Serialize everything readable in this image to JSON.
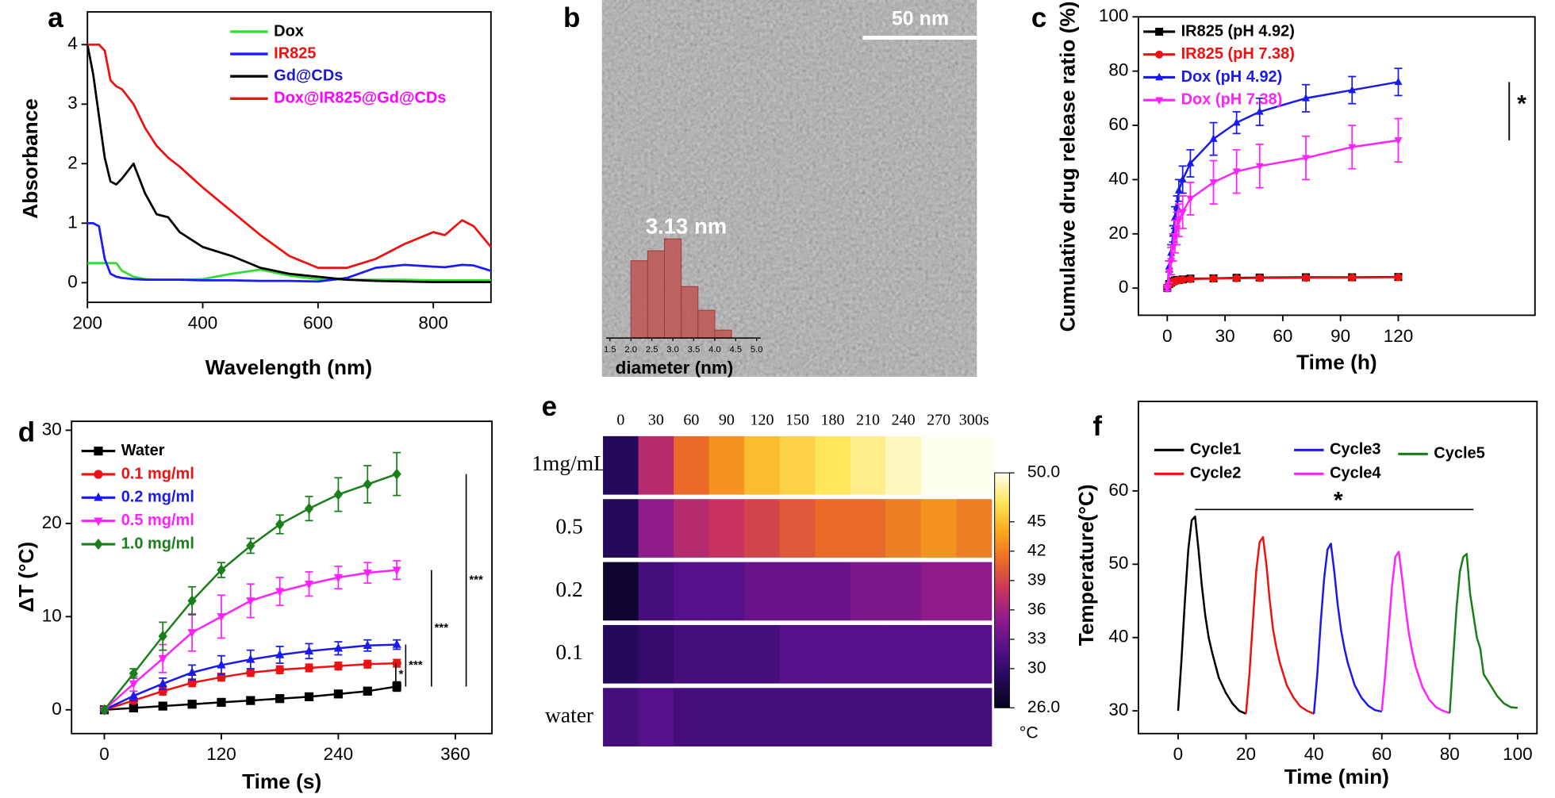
{
  "chart_data": [
    {
      "type": "line",
      "panel": "a",
      "xlabel": "Wavelength (nm)",
      "ylabel": "Absorbance",
      "x": [
        200,
        210,
        220,
        230,
        240,
        250,
        260,
        280,
        300,
        320,
        340,
        360,
        400,
        450,
        500,
        550,
        600,
        650,
        700,
        750,
        800,
        820,
        850,
        870,
        900
      ],
      "series": [
        {
          "name": "Dox",
          "color": "#33dd33",
          "label_color": "#000000",
          "values": [
            0.33,
            0.33,
            0.33,
            0.33,
            0.33,
            0.33,
            0.2,
            0.1,
            0.06,
            0.05,
            0.05,
            0.05,
            0.06,
            0.15,
            0.22,
            0.12,
            0.06,
            0.05,
            0.05,
            0.05,
            0.04,
            0.04,
            0.04,
            0.04,
            0.04
          ]
        },
        {
          "name": "IR825",
          "color": "#1a1aff",
          "label_color": "#ee1111",
          "values": [
            1.0,
            1.0,
            0.95,
            0.4,
            0.15,
            0.1,
            0.08,
            0.06,
            0.05,
            0.05,
            0.05,
            0.05,
            0.04,
            0.04,
            0.03,
            0.03,
            0.02,
            0.08,
            0.25,
            0.3,
            0.27,
            0.26,
            0.3,
            0.29,
            0.2
          ]
        },
        {
          "name": "Gd@CDs",
          "color": "#000000",
          "label_color": "#1a1acc",
          "values": [
            4.0,
            3.5,
            2.8,
            2.1,
            1.7,
            1.65,
            1.75,
            2.0,
            1.5,
            1.15,
            1.1,
            0.85,
            0.6,
            0.45,
            0.25,
            0.15,
            0.1,
            0.05,
            0.03,
            0.02,
            0.01,
            0.01,
            0.01,
            0.01,
            0.01
          ]
        },
        {
          "name": "Dox@IR825@Gd@CDs",
          "color": "#ee1111",
          "label_color": "#ff00ff",
          "values": [
            4.0,
            4.0,
            4.0,
            3.9,
            3.4,
            3.3,
            3.25,
            3.0,
            2.6,
            2.3,
            2.1,
            1.95,
            1.6,
            1.2,
            0.8,
            0.45,
            0.25,
            0.25,
            0.4,
            0.65,
            0.85,
            0.8,
            1.05,
            0.95,
            0.6
          ]
        }
      ],
      "xlim": [
        200,
        900
      ],
      "ylim": [
        -0.33,
        4.55
      ],
      "xticks": [
        200,
        400,
        600,
        800
      ],
      "yticks": [
        0,
        1,
        2,
        3,
        4
      ]
    },
    {
      "type": "image",
      "panel": "b",
      "scale_bar": "50 nm",
      "inset": {
        "type": "histogram",
        "annotation": "3.13 nm",
        "xlabel": "diameter (nm)",
        "bins": [
          2.0,
          2.4,
          2.8,
          3.2,
          3.6,
          4.0,
          4.4
        ],
        "counts": [
          78,
          88,
          100,
          52,
          28,
          8
        ],
        "color": "#c05555",
        "xlim": [
          1.5,
          5.0
        ],
        "xticks": [
          1.5,
          {
            "value": 2,
            "label": "2.0"
          },
          2.5,
          {
            "value": 3,
            "label": "3.0"
          },
          3.5,
          {
            "value": 4,
            "label": "4.0"
          },
          4.5,
          {
            "value": 5,
            "label": "5.0"
          }
        ]
      }
    },
    {
      "type": "line",
      "panel": "c",
      "xlabel": "Time (h)",
      "ylabel": "Cumulative drug release ratio (%)",
      "annotation": "*",
      "x": [
        0,
        1,
        2,
        3,
        4,
        5,
        6,
        8,
        12,
        24,
        36,
        48,
        72,
        96,
        120
      ],
      "series": [
        {
          "name": "IR825 (pH 4.92)",
          "color": "#000000",
          "label_color": "#000000",
          "marker": "square",
          "values": [
            0,
            1.5,
            2,
            2.5,
            2.8,
            3,
            3,
            3.2,
            3.5,
            3.6,
            3.8,
            3.9,
            4,
            4,
            4.1
          ],
          "errors": [
            0.5,
            0.5,
            0.5,
            0.5,
            0.5,
            0.5,
            0.5,
            0.5,
            0.5,
            0.5,
            0.5,
            0.5,
            0.5,
            0.5,
            0.5
          ]
        },
        {
          "name": "IR825 (pH 7.38)",
          "color": "#ee1111",
          "label_color": "#ee1111",
          "marker": "circle",
          "values": [
            0,
            1.3,
            1.8,
            2.3,
            2.6,
            2.8,
            2.9,
            3.1,
            3.3,
            3.5,
            3.6,
            3.7,
            3.8,
            3.9,
            4
          ],
          "errors": [
            0.5,
            0.5,
            0.5,
            0.5,
            0.5,
            0.5,
            0.5,
            0.5,
            0.5,
            0.5,
            0.5,
            0.5,
            0.5,
            0.5,
            0.5
          ]
        },
        {
          "name": "Dox (pH 4.92)",
          "color": "#1a1aee",
          "label_color": "#1a1aee",
          "marker": "triangle-up",
          "values": [
            0,
            8,
            13,
            20,
            26,
            30,
            36,
            40,
            46,
            55,
            61,
            65,
            70,
            73,
            76
          ],
          "errors": [
            1,
            2,
            3,
            3,
            4,
            4,
            4,
            5,
            5,
            6,
            4,
            5,
            5,
            5,
            5
          ]
        },
        {
          "name": "Dox (pH 7.38)",
          "color": "#ff22ff",
          "label_color": "#ff22ff",
          "marker": "triangle-down",
          "values": [
            0,
            6,
            10,
            15,
            19,
            22,
            25,
            28,
            33,
            39,
            43,
            45,
            48,
            52,
            54.5
          ],
          "errors": [
            1,
            4,
            5,
            5,
            6,
            6,
            6,
            6,
            6,
            8,
            8,
            8,
            8,
            8,
            8
          ]
        }
      ],
      "xlim": [
        -15,
        191
      ],
      "ylim": [
        -10,
        100
      ],
      "xticks": [
        0,
        30,
        60,
        90,
        120
      ],
      "yticks": [
        0,
        20,
        40,
        60,
        80,
        100
      ]
    },
    {
      "type": "line",
      "panel": "d",
      "xlabel": "Time (s)",
      "ylabel": "ΔT (°C)",
      "annotations": [
        "*",
        "***",
        "***",
        "***"
      ],
      "x": [
        0,
        30,
        60,
        90,
        120,
        150,
        180,
        210,
        240,
        270,
        300
      ],
      "series": [
        {
          "name": "Water",
          "color": "#000000",
          "label_color": "#000000",
          "marker": "square",
          "values": [
            0,
            0.2,
            0.4,
            0.6,
            0.8,
            1.0,
            1.2,
            1.4,
            1.7,
            2.0,
            2.5
          ],
          "errors": [
            0,
            0.2,
            0.2,
            0.2,
            0.2,
            0.2,
            0.3,
            0.3,
            0.3,
            0.4,
            0.5
          ]
        },
        {
          "name": "0.1 mg/ml",
          "color": "#ee1111",
          "label_color": "#ee1111",
          "marker": "circle",
          "values": [
            0,
            1.0,
            2.0,
            2.9,
            3.5,
            4.0,
            4.3,
            4.5,
            4.7,
            4.9,
            5.0
          ],
          "errors": [
            0,
            0.3,
            0.4,
            0.4,
            0.4,
            0.4,
            0.4,
            0.4,
            0.4,
            0.4,
            0.4
          ]
        },
        {
          "name": "0.2 mg/ml",
          "color": "#1a1aee",
          "label_color": "#1a1aee",
          "marker": "triangle-up",
          "values": [
            0,
            1.5,
            2.8,
            4.0,
            4.8,
            5.4,
            5.9,
            6.3,
            6.6,
            6.9,
            7.0
          ],
          "errors": [
            0,
            0.5,
            0.6,
            0.8,
            1.0,
            1.0,
            0.9,
            0.8,
            0.7,
            0.6,
            0.5
          ]
        },
        {
          "name": "0.5 mg/ml",
          "color": "#ff22ff",
          "label_color": "#ff22ff",
          "marker": "triangle-down",
          "values": [
            0,
            2.8,
            5.5,
            8.3,
            10.0,
            11.7,
            12.7,
            13.5,
            14.2,
            14.7,
            15.0
          ],
          "errors": [
            0,
            0.8,
            1.5,
            2.0,
            2.3,
            1.8,
            1.5,
            1.3,
            1.2,
            1.1,
            1.0
          ]
        },
        {
          "name": "1.0 mg/ml",
          "color": "#1a7f1a",
          "label_color": "#1a7f1a",
          "marker": "diamond",
          "values": [
            0,
            3.9,
            7.9,
            11.7,
            15.0,
            17.6,
            19.9,
            21.6,
            23.1,
            24.2,
            25.3
          ],
          "errors": [
            0,
            0.5,
            1.5,
            1.5,
            0.8,
            0.8,
            1.0,
            1.3,
            1.8,
            2.0,
            2.3
          ]
        }
      ],
      "xlim": [
        -33.6,
        397.6
      ],
      "ylim": [
        -2.55,
        30.96
      ],
      "xticks": [
        0,
        120,
        240,
        360
      ],
      "yticks": [
        0,
        10,
        20,
        30
      ]
    },
    {
      "type": "heatmap",
      "panel": "e",
      "columns": [
        "0",
        "30",
        "60",
        "90",
        "120",
        "150",
        "180",
        "210",
        "240",
        "270",
        "300s"
      ],
      "rows": [
        "1mg/mL",
        "0.5",
        "0.2",
        "0.1",
        "water"
      ],
      "values": [
        [
          29,
          37,
          41,
          43,
          45,
          46,
          47,
          48,
          49,
          50,
          50
        ],
        [
          29,
          35,
          37,
          38,
          39,
          40,
          41,
          41,
          42,
          43,
          42
        ],
        [
          27,
          31,
          32,
          32,
          33,
          33,
          33,
          34,
          34,
          35,
          35
        ],
        [
          29,
          30,
          31,
          31,
          31,
          32,
          32,
          32,
          32,
          32,
          32
        ],
        [
          31,
          32,
          31,
          31,
          31,
          31,
          31,
          31,
          31,
          31,
          31
        ]
      ],
      "clim": [
        26,
        50
      ],
      "colorscale": [
        "#05031a",
        "#24095c",
        "#55108a",
        "#8e1a8c",
        "#c8335f",
        "#ea6a28",
        "#f9a81c",
        "#fde65a",
        "#fffff0"
      ],
      "colorbar_ticks": [
        {
          "value": 26,
          "label": "26.0"
        },
        30,
        33,
        36,
        39,
        42,
        45,
        {
          "value": 50,
          "label": "50.0"
        }
      ],
      "colorbar_label": "°C"
    },
    {
      "type": "line",
      "panel": "f",
      "xlabel": "Time (min)",
      "ylabel": "Temperature(°C)",
      "annotation": "*",
      "series": [
        {
          "name": "Cycle1",
          "color": "#000000",
          "label_color": "#000000",
          "x": [
            0,
            1,
            2,
            3,
            4,
            5,
            6,
            7,
            8,
            9,
            10,
            12,
            14,
            16,
            18,
            20
          ],
          "values": [
            30,
            37,
            45,
            52,
            56,
            56.5,
            52,
            47,
            43,
            40,
            38,
            34.5,
            32.5,
            31,
            30,
            29.6
          ]
        },
        {
          "name": "Cycle2",
          "color": "#ee1111",
          "label_color": "#000000",
          "x": [
            20,
            21,
            22,
            23,
            24,
            25,
            26,
            27,
            28,
            29,
            30,
            32,
            34,
            36,
            38,
            40
          ],
          "values": [
            29.6,
            35,
            42,
            49,
            53,
            53.7,
            50,
            45,
            41,
            38.5,
            36.5,
            33.5,
            31.8,
            30.6,
            30,
            29.6
          ]
        },
        {
          "name": "Cycle3",
          "color": "#1a1aee",
          "label_color": "#000000",
          "x": [
            40,
            41,
            42,
            43,
            44,
            45,
            46,
            47,
            48,
            49,
            50,
            52,
            54,
            56,
            58,
            60
          ],
          "values": [
            29.6,
            35,
            42,
            48,
            52,
            52.8,
            49,
            44.5,
            41,
            38.5,
            36.5,
            33.5,
            31.8,
            30.7,
            30.1,
            29.9
          ]
        },
        {
          "name": "Cycle4",
          "color": "#ff22ff",
          "label_color": "#000000",
          "x": [
            60,
            61,
            62,
            63,
            64,
            65,
            66,
            67,
            68,
            69,
            70,
            72,
            74,
            76,
            78,
            80
          ],
          "values": [
            30,
            35,
            41,
            47,
            51,
            51.7,
            48,
            44,
            40.5,
            38,
            36,
            33.2,
            31.5,
            30.5,
            30,
            29.7
          ]
        },
        {
          "name": "Cycle5",
          "color": "#1a7f1a",
          "label_color": "#000000",
          "x": [
            80,
            81,
            82,
            83,
            84,
            85,
            86,
            87,
            88,
            89,
            90,
            92,
            94,
            96,
            98,
            100
          ],
          "values": [
            29.7,
            37,
            44,
            49,
            51,
            51.4,
            46,
            43,
            40,
            38.5,
            35,
            33.5,
            32,
            31,
            30.5,
            30.4
          ]
        }
      ],
      "xlim": [
        -11.7,
        105.7
      ],
      "ylim": [
        26.9,
        72.2
      ],
      "xticks": [
        0,
        20,
        40,
        60,
        80,
        100
      ],
      "yticks": [
        30,
        40,
        50,
        60
      ]
    }
  ]
}
